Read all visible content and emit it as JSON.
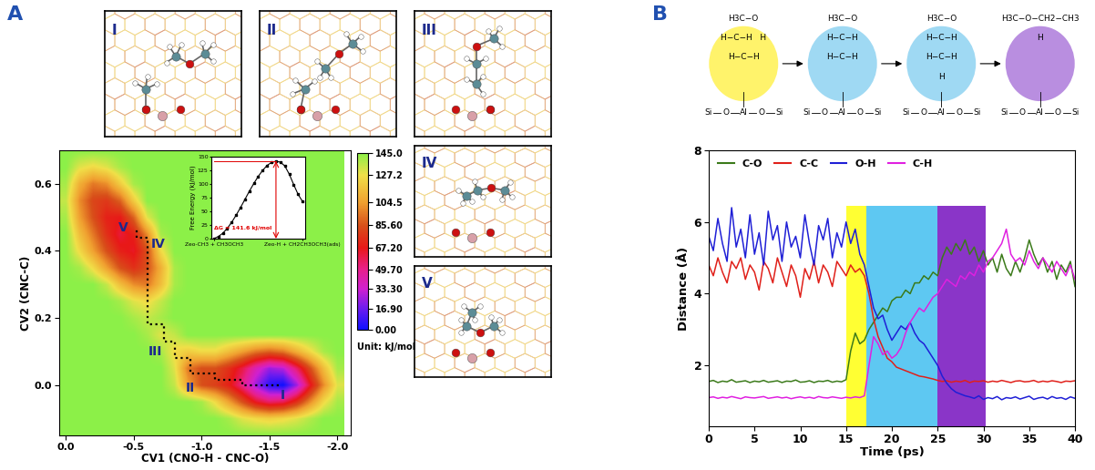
{
  "panel_labels": [
    "A",
    "B"
  ],
  "snapshots": [
    "I",
    "II",
    "III",
    "IV",
    "V"
  ],
  "chart_data": [
    {
      "type": "heatmap",
      "x_label": "CV1 (CNO-H - CNC-O)",
      "y_label": "CV2 (CNC-C)",
      "x": [
        0.0,
        -0.1,
        -0.2,
        -0.3,
        -0.4,
        -0.5,
        -0.6,
        -0.7,
        -0.8,
        -0.9,
        -1.0,
        -1.1,
        -1.2,
        -1.3,
        -1.4,
        -1.5,
        -1.6,
        -1.7,
        -1.8,
        -1.9,
        -2.0
      ],
      "y": [
        -0.15,
        -0.1,
        -0.05,
        0.0,
        0.05,
        0.1,
        0.15,
        0.2,
        0.25,
        0.3,
        0.35,
        0.4,
        0.45,
        0.5,
        0.55,
        0.6,
        0.65,
        0.7
      ],
      "cells": [
        [
          145,
          145,
          145,
          145,
          145,
          145,
          145,
          145,
          145,
          145,
          145,
          145,
          145,
          145,
          145,
          145,
          145,
          145,
          145,
          145,
          145
        ],
        [
          145,
          145,
          145,
          145,
          145,
          145,
          145,
          145,
          145,
          145,
          145,
          145,
          140,
          130,
          125,
          122,
          125,
          130,
          138,
          145,
          145
        ],
        [
          145,
          145,
          145,
          145,
          145,
          145,
          145,
          145,
          145,
          145,
          140,
          125,
          105,
          85,
          65,
          55,
          58,
          75,
          100,
          125,
          140
        ],
        [
          145,
          145,
          145,
          145,
          145,
          145,
          145,
          145,
          135,
          105,
          85,
          80,
          70,
          50,
          25,
          5,
          0,
          25,
          65,
          100,
          130
        ],
        [
          145,
          145,
          145,
          145,
          145,
          145,
          145,
          145,
          130,
          95,
          85,
          85,
          75,
          60,
          40,
          25,
          30,
          55,
          85,
          115,
          140
        ],
        [
          145,
          145,
          145,
          145,
          145,
          145,
          145,
          140,
          125,
          120,
          125,
          125,
          115,
          105,
          95,
          90,
          95,
          110,
          125,
          140,
          145
        ],
        [
          145,
          145,
          145,
          145,
          145,
          145,
          140,
          130,
          135,
          145,
          145,
          145,
          145,
          145,
          145,
          145,
          145,
          145,
          145,
          145,
          145
        ],
        [
          145,
          145,
          145,
          145,
          145,
          140,
          135,
          140,
          145,
          145,
          145,
          145,
          145,
          145,
          145,
          145,
          145,
          145,
          145,
          145,
          145
        ],
        [
          145,
          145,
          145,
          145,
          140,
          130,
          125,
          135,
          145,
          145,
          145,
          145,
          145,
          145,
          145,
          145,
          145,
          145,
          145,
          145,
          145
        ],
        [
          145,
          145,
          145,
          135,
          115,
          100,
          95,
          115,
          140,
          145,
          145,
          145,
          145,
          145,
          145,
          145,
          145,
          145,
          145,
          145,
          145
        ],
        [
          145,
          140,
          125,
          105,
          85,
          75,
          85,
          110,
          140,
          145,
          145,
          145,
          145,
          145,
          145,
          145,
          145,
          145,
          145,
          145,
          145
        ],
        [
          145,
          125,
          105,
          85,
          70,
          65,
          85,
          125,
          145,
          145,
          145,
          145,
          145,
          145,
          145,
          145,
          145,
          145,
          145,
          145,
          145
        ],
        [
          145,
          115,
          95,
          75,
          62,
          70,
          100,
          140,
          145,
          145,
          145,
          145,
          145,
          145,
          145,
          145,
          145,
          145,
          145,
          145,
          145
        ],
        [
          140,
          105,
          85,
          70,
          68,
          90,
          130,
          145,
          145,
          145,
          145,
          145,
          145,
          145,
          145,
          145,
          145,
          145,
          145,
          145,
          145
        ],
        [
          135,
          100,
          82,
          78,
          90,
          120,
          145,
          145,
          145,
          145,
          145,
          145,
          145,
          145,
          145,
          145,
          145,
          145,
          145,
          145,
          145
        ],
        [
          140,
          110,
          95,
          100,
          120,
          140,
          145,
          145,
          145,
          145,
          145,
          145,
          145,
          145,
          145,
          145,
          145,
          145,
          145,
          145,
          145
        ],
        [
          145,
          130,
          125,
          130,
          140,
          145,
          145,
          145,
          145,
          145,
          145,
          145,
          145,
          145,
          145,
          145,
          145,
          145,
          145,
          145,
          145
        ],
        [
          145,
          145,
          145,
          145,
          145,
          145,
          145,
          145,
          145,
          145,
          145,
          145,
          145,
          145,
          145,
          145,
          145,
          145,
          145,
          145,
          145
        ]
      ],
      "xlim": [
        0.05,
        -2.1
      ],
      "ylim": [
        -0.15,
        0.7
      ],
      "xticks": [
        0.0,
        -0.5,
        -1.0,
        -1.5,
        -2.0
      ],
      "yticks": [
        0.0,
        0.2,
        0.4,
        0.6
      ],
      "colorbar": {
        "range": [
          0,
          145
        ],
        "ticks": [
          {
            "value": 145.0,
            "label": "145.0"
          },
          {
            "value": 127.2,
            "label": "127.2"
          },
          {
            "value": 104.5,
            "label": "104.5"
          },
          {
            "value": 85.6,
            "label": "85.60"
          },
          {
            "value": 67.2,
            "label": "67.20"
          },
          {
            "value": 49.7,
            "label": "49.70"
          },
          {
            "value": 33.3,
            "label": "33.30"
          },
          {
            "value": 16.9,
            "label": "16.90"
          },
          {
            "value": 0.0,
            "label": "0.00"
          }
        ],
        "unit": "Unit: kJ/mol"
      },
      "path": {
        "x": [
          -1.57,
          -1.3,
          -1.3,
          -1.1,
          -1.1,
          -0.92,
          -0.92,
          -0.8,
          -0.8,
          -0.72,
          -0.72,
          -0.6,
          -0.6,
          -0.52,
          -0.52
        ],
        "y": [
          0.0,
          0.0,
          0.015,
          0.015,
          0.035,
          0.035,
          0.08,
          0.08,
          0.13,
          0.13,
          0.18,
          0.18,
          0.44,
          0.44,
          0.47
        ],
        "line_style": "dotted",
        "color": "#000000"
      },
      "state_labels": [
        {
          "text": "I",
          "x": -1.6,
          "y": -0.03
        },
        {
          "text": "II",
          "x": -0.92,
          "y": -0.01
        },
        {
          "text": "III",
          "x": -0.66,
          "y": 0.1
        },
        {
          "text": "IV",
          "x": -0.68,
          "y": 0.42
        },
        {
          "text": "V",
          "x": -0.42,
          "y": 0.47
        }
      ]
    },
    {
      "type": "line",
      "x": [
        0,
        0.05,
        0.1,
        0.15,
        0.2,
        0.25,
        0.3,
        0.35,
        0.4,
        0.45,
        0.5,
        0.55,
        0.6,
        0.65,
        0.7,
        0.75,
        0.8,
        0.85,
        0.9,
        0.95,
        1.0
      ],
      "values": [
        0,
        4,
        10,
        19,
        30,
        43,
        57,
        72,
        87,
        101,
        114,
        125,
        134,
        139.5,
        141.6,
        140,
        133,
        118,
        99,
        81,
        68
      ],
      "color": "#000000",
      "marker": "square",
      "y_label": "Free Energy (kJ/mol)",
      "xlim": [
        -0.03,
        1.03
      ],
      "ylim": [
        0,
        150
      ],
      "xticks": [
        {
          "value": 0,
          "label": "Zeo-CH3 + CH3OCH3"
        },
        {
          "value": 1,
          "label": "Zeo-H + CH2CH3OCH3(ads)"
        }
      ],
      "yticks": [
        0,
        25,
        50,
        75,
        100,
        125,
        150
      ],
      "annotation": {
        "text": "ΔG = 141.6 kJ/mol",
        "value": 141.6,
        "color": "#e00000"
      }
    },
    {
      "type": "line",
      "x_label": "Time (ps)",
      "y_label": "Distance (Å)",
      "x": [
        0,
        0.5,
        1,
        1.5,
        2,
        2.5,
        3,
        3.5,
        4,
        4.5,
        5,
        5.5,
        6,
        6.5,
        7,
        7.5,
        8,
        8.5,
        9,
        9.5,
        10,
        10.5,
        11,
        11.5,
        12,
        12.5,
        13,
        13.5,
        14,
        14.5,
        15,
        15.5,
        16,
        16.5,
        17,
        17.5,
        18,
        18.5,
        19,
        19.5,
        20,
        20.5,
        21,
        21.5,
        22,
        22.5,
        23,
        23.5,
        24,
        24.5,
        25,
        25.5,
        26,
        26.5,
        27,
        27.5,
        28,
        28.5,
        29,
        29.5,
        30,
        30.5,
        31,
        31.5,
        32,
        32.5,
        33,
        33.5,
        34,
        34.5,
        35,
        35.5,
        36,
        36.5,
        37,
        37.5,
        38,
        38.5,
        39,
        39.5,
        40
      ],
      "series": [
        {
          "name": "C-O",
          "color": "#3b7a1a",
          "values": [
            1.55,
            1.58,
            1.52,
            1.56,
            1.54,
            1.6,
            1.53,
            1.55,
            1.57,
            1.52,
            1.56,
            1.54,
            1.58,
            1.53,
            1.55,
            1.57,
            1.52,
            1.56,
            1.55,
            1.59,
            1.53,
            1.54,
            1.57,
            1.52,
            1.56,
            1.55,
            1.58,
            1.53,
            1.56,
            1.54,
            1.6,
            2.4,
            2.9,
            2.6,
            2.7,
            3.0,
            3.2,
            3.4,
            3.6,
            3.5,
            3.8,
            3.9,
            3.9,
            4.1,
            4.0,
            4.3,
            4.3,
            4.5,
            4.4,
            4.6,
            4.5,
            5.0,
            5.3,
            5.1,
            5.4,
            5.2,
            5.5,
            5.1,
            5.3,
            4.9,
            5.2,
            4.8,
            5.0,
            4.6,
            5.1,
            4.7,
            4.5,
            4.9,
            4.6,
            5.0,
            5.5,
            5.1,
            4.8,
            5.0,
            4.6,
            4.9,
            4.4,
            4.8,
            4.6,
            4.9,
            4.2
          ]
        },
        {
          "name": "C-C",
          "color": "#e0201a",
          "values": [
            4.8,
            4.5,
            5.0,
            4.6,
            4.3,
            4.9,
            4.7,
            5.0,
            4.4,
            4.8,
            4.6,
            4.1,
            4.9,
            4.7,
            4.3,
            5.0,
            4.6,
            4.2,
            4.8,
            4.5,
            3.9,
            4.7,
            4.4,
            4.9,
            4.3,
            4.8,
            4.6,
            4.2,
            4.9,
            4.7,
            4.5,
            4.8,
            4.6,
            4.7,
            4.5,
            4.0,
            3.3,
            2.8,
            2.5,
            2.2,
            2.1,
            1.95,
            1.9,
            1.85,
            1.8,
            1.75,
            1.7,
            1.68,
            1.65,
            1.62,
            1.58,
            1.55,
            1.57,
            1.53,
            1.56,
            1.54,
            1.58,
            1.52,
            1.56,
            1.55,
            1.57,
            1.53,
            1.56,
            1.54,
            1.58,
            1.55,
            1.52,
            1.56,
            1.57,
            1.54,
            1.55,
            1.58,
            1.53,
            1.56,
            1.54,
            1.57,
            1.55,
            1.52,
            1.56,
            1.55,
            1.57
          ]
        },
        {
          "name": "O-H",
          "color": "#1f1fd6",
          "values": [
            5.6,
            5.2,
            6.1,
            5.4,
            4.9,
            6.4,
            5.3,
            5.8,
            5.0,
            6.2,
            5.1,
            5.7,
            4.8,
            6.3,
            5.5,
            5.9,
            4.9,
            6.0,
            5.3,
            5.6,
            5.0,
            6.2,
            5.4,
            4.8,
            5.9,
            5.5,
            6.1,
            5.0,
            5.7,
            5.3,
            6.0,
            5.4,
            5.8,
            5.1,
            4.8,
            4.2,
            3.6,
            3.3,
            3.4,
            3.0,
            2.7,
            2.9,
            3.1,
            3.0,
            3.2,
            2.9,
            2.7,
            2.6,
            2.4,
            2.2,
            2.0,
            1.7,
            1.5,
            1.35,
            1.25,
            1.2,
            1.15,
            1.12,
            1.08,
            1.15,
            1.05,
            1.1,
            1.07,
            1.13,
            1.04,
            1.1,
            1.08,
            1.12,
            1.06,
            1.1,
            1.14,
            1.05,
            1.09,
            1.11,
            1.06,
            1.13,
            1.08,
            1.1,
            1.05,
            1.12,
            1.08
          ]
        },
        {
          "name": "C-H",
          "color": "#e020e0",
          "values": [
            1.1,
            1.12,
            1.08,
            1.11,
            1.09,
            1.13,
            1.1,
            1.07,
            1.12,
            1.1,
            1.09,
            1.11,
            1.13,
            1.08,
            1.1,
            1.12,
            1.09,
            1.11,
            1.07,
            1.1,
            1.12,
            1.09,
            1.11,
            1.08,
            1.13,
            1.1,
            1.09,
            1.12,
            1.1,
            1.08,
            1.11,
            1.09,
            1.12,
            1.1,
            1.15,
            2.0,
            2.8,
            2.6,
            2.3,
            2.4,
            2.2,
            2.3,
            2.5,
            2.9,
            3.2,
            3.4,
            3.6,
            3.5,
            3.7,
            3.9,
            4.0,
            4.2,
            4.4,
            4.3,
            4.2,
            4.5,
            4.4,
            4.6,
            4.5,
            4.8,
            4.6,
            4.9,
            5.0,
            5.2,
            5.4,
            5.8,
            5.1,
            4.9,
            5.0,
            4.8,
            5.2,
            4.9,
            4.7,
            5.0,
            4.8,
            4.6,
            4.9,
            4.7,
            4.5,
            4.8,
            4.4
          ]
        }
      ],
      "xlim": [
        0,
        40
      ],
      "ylim": [
        0.3,
        8
      ],
      "xticks": [
        0,
        5,
        10,
        15,
        20,
        25,
        30,
        35,
        40
      ],
      "yticks": [
        2,
        4,
        6,
        8
      ],
      "legend": "upper left",
      "phases": [
        {
          "start": 15.0,
          "end": 17.2,
          "color": "#ffff33"
        },
        {
          "start": 17.2,
          "end": 25.0,
          "color": "#5ec8f2"
        },
        {
          "start": 25.0,
          "end": 30.2,
          "color": "#8a35c8"
        }
      ],
      "phase_top": 6.45
    }
  ],
  "scheme": {
    "framework": [
      "Si",
      "O",
      "Al",
      "O",
      "Si"
    ],
    "stages": [
      {
        "color": "#fff36b",
        "molecule": [
          "H3C−O",
          "H−C−H   H",
          "H−C−H"
        ]
      },
      {
        "color": "#9fd9f3",
        "molecule": [
          "H3C−O",
          "H−C−H",
          "H−C−H"
        ]
      },
      {
        "color": "#9fd9f3",
        "molecule": [
          "H3C−O",
          "H−C−H",
          "H−C−H",
          "H"
        ]
      },
      {
        "color": "#b98ee0",
        "molecule": [
          "H3C−O−CH2−CH3",
          "H"
        ]
      }
    ]
  }
}
